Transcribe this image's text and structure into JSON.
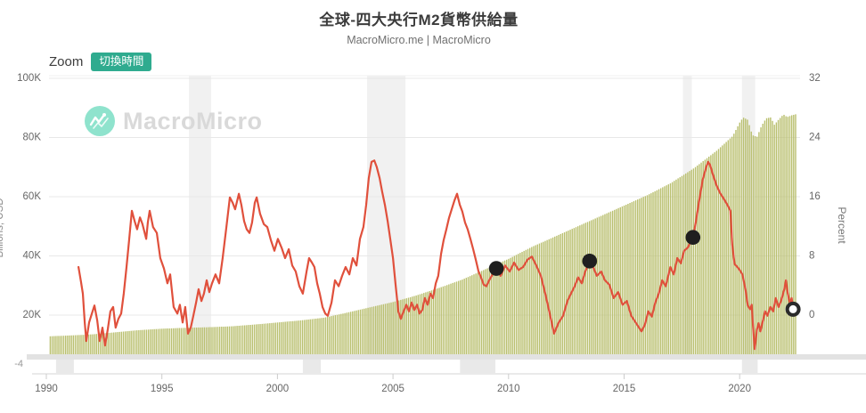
{
  "header": {
    "title": "全球-四大央行M2貨幣供給量",
    "subtitle": "MacroMicro.me | MacroMicro"
  },
  "toolbar": {
    "zoom_label": "Zoom",
    "switch_time_label": "切換時間",
    "button_color": "#2fab8f"
  },
  "watermark": {
    "brand": "MacroMicro",
    "icon_color": "#8fe3cd"
  },
  "chart_data": {
    "type": "combo",
    "title": "全球-四大央行M2貨幣供給量",
    "source": "MacroMicro.me | MacroMicro",
    "x_axis": {
      "tick_labels": [
        "1990",
        "1995",
        "2000",
        "2005",
        "2010",
        "2015",
        "2020"
      ],
      "tick_years": [
        1990,
        1995,
        2000,
        2005,
        2010,
        2015,
        2020
      ],
      "range_years": [
        1989.8,
        2024.4
      ]
    },
    "left_axis": {
      "title": "Billions, USD",
      "tick_labels": [
        "100K",
        "80K",
        "60K",
        "40K",
        "20K"
      ],
      "tick_values_K": [
        100,
        80,
        60,
        40,
        20
      ],
      "bottom_label": "-4"
    },
    "right_axis": {
      "title": "Percent",
      "tick_labels": [
        "32",
        "24",
        "16",
        "8",
        "0"
      ],
      "tick_values": [
        32,
        24,
        16,
        8,
        0
      ]
    },
    "grid_color": "#e8e8e8",
    "series": [
      {
        "id": "m2-bars",
        "type": "bar",
        "unit": "Billions USD (K = thousands)",
        "color": "#b9bf6e",
        "anchors_year_valueK": [
          [
            1990,
            12.8
          ],
          [
            1991,
            13.1
          ],
          [
            1992,
            13.5
          ],
          [
            1993,
            14.2
          ],
          [
            1994,
            14.9
          ],
          [
            1995,
            15.4
          ],
          [
            1996,
            15.7
          ],
          [
            1997,
            15.9
          ],
          [
            1998,
            16.2
          ],
          [
            1999,
            16.8
          ],
          [
            2000,
            17.5
          ],
          [
            2001,
            18.2
          ],
          [
            2002,
            19.1
          ],
          [
            2003,
            20.8
          ],
          [
            2004,
            22.6
          ],
          [
            2005,
            24.4
          ],
          [
            2006,
            26.6
          ],
          [
            2007,
            29.2
          ],
          [
            2008,
            32.0
          ],
          [
            2009,
            35.5
          ],
          [
            2010,
            39.0
          ],
          [
            2011,
            43.0
          ],
          [
            2012,
            46.5
          ],
          [
            2013,
            50.0
          ],
          [
            2014,
            53.5
          ],
          [
            2015,
            57.0
          ],
          [
            2016,
            60.5
          ],
          [
            2017,
            64.5
          ],
          [
            2018,
            69.5
          ],
          [
            2019,
            75.5
          ],
          [
            2019.7,
            80.5
          ],
          [
            2020.0,
            85.0
          ],
          [
            2020.15,
            86.8
          ],
          [
            2020.35,
            86.0
          ],
          [
            2020.55,
            80.8
          ],
          [
            2020.75,
            80.2
          ],
          [
            2020.95,
            84.0
          ],
          [
            2021.15,
            86.5
          ],
          [
            2021.35,
            86.8
          ],
          [
            2021.5,
            84.3
          ],
          [
            2021.7,
            86.2
          ],
          [
            2021.9,
            87.8
          ],
          [
            2022.05,
            86.9
          ],
          [
            2022.25,
            87.5
          ],
          [
            2022.45,
            87.9
          ]
        ]
      },
      {
        "id": "yoy-line",
        "type": "line",
        "unit": "%",
        "color": "#e0503c",
        "points_year_pct": [
          [
            1991.39,
            6.5
          ],
          [
            1991.5,
            4.5
          ],
          [
            1991.58,
            2.9
          ],
          [
            1991.66,
            -1
          ],
          [
            1991.73,
            -3.5
          ],
          [
            1991.85,
            -1
          ],
          [
            1991.97,
            0.2
          ],
          [
            1992.08,
            1.3
          ],
          [
            1992.2,
            -0.7
          ],
          [
            1992.31,
            -3.5
          ],
          [
            1992.43,
            -1.7
          ],
          [
            1992.54,
            -4.1
          ],
          [
            1992.66,
            -1.9
          ],
          [
            1992.77,
            0.5
          ],
          [
            1992.89,
            1.1
          ],
          [
            1993,
            -1.7
          ],
          [
            1993.12,
            -0.5
          ],
          [
            1993.24,
            0.2
          ],
          [
            1993.35,
            2.9
          ],
          [
            1993.47,
            6.5
          ],
          [
            1993.58,
            10.1
          ],
          [
            1993.7,
            14.1
          ],
          [
            1993.82,
            12.7
          ],
          [
            1993.93,
            11.6
          ],
          [
            1994.05,
            13.2
          ],
          [
            1994.16,
            12.3
          ],
          [
            1994.32,
            10.3
          ],
          [
            1994.39,
            12.5
          ],
          [
            1994.47,
            14.1
          ],
          [
            1994.62,
            11.9
          ],
          [
            1994.78,
            11.1
          ],
          [
            1994.93,
            7.7
          ],
          [
            1995.09,
            6.3
          ],
          [
            1995.24,
            4.3
          ],
          [
            1995.36,
            5.5
          ],
          [
            1995.51,
            1.1
          ],
          [
            1995.67,
            0.2
          ],
          [
            1995.78,
            1.4
          ],
          [
            1995.9,
            -1
          ],
          [
            1996.01,
            1.1
          ],
          [
            1996.13,
            -2.5
          ],
          [
            1996.25,
            -1.7
          ],
          [
            1996.36,
            -0.1
          ],
          [
            1996.48,
            1.7
          ],
          [
            1996.59,
            3.5
          ],
          [
            1996.71,
            1.9
          ],
          [
            1996.82,
            2.9
          ],
          [
            1996.94,
            4.7
          ],
          [
            1997.05,
            3.1
          ],
          [
            1997.17,
            4.3
          ],
          [
            1997.32,
            5.5
          ],
          [
            1997.48,
            4.3
          ],
          [
            1997.63,
            7.7
          ],
          [
            1997.79,
            11.9
          ],
          [
            1997.94,
            15.9
          ],
          [
            1998.06,
            15.2
          ],
          [
            1998.17,
            14.3
          ],
          [
            1998.33,
            16.4
          ],
          [
            1998.44,
            14.9
          ],
          [
            1998.56,
            12.7
          ],
          [
            1998.67,
            11.6
          ],
          [
            1998.79,
            11.1
          ],
          [
            1998.9,
            12.5
          ],
          [
            1999.02,
            15.2
          ],
          [
            1999.1,
            15.9
          ],
          [
            1999.25,
            13.7
          ],
          [
            1999.41,
            12.3
          ],
          [
            1999.56,
            11.9
          ],
          [
            1999.72,
            10.1
          ],
          [
            1999.87,
            8.7
          ],
          [
            2000.02,
            10.3
          ],
          [
            2000.18,
            9.1
          ],
          [
            2000.33,
            7.7
          ],
          [
            2000.49,
            8.9
          ],
          [
            2000.64,
            6.7
          ],
          [
            2000.79,
            5.9
          ],
          [
            2000.95,
            3.9
          ],
          [
            2001.1,
            2.9
          ],
          [
            2001.26,
            5.9
          ],
          [
            2001.37,
            7.7
          ],
          [
            2001.49,
            7.1
          ],
          [
            2001.6,
            6.5
          ],
          [
            2001.72,
            4.3
          ],
          [
            2001.83,
            2.9
          ],
          [
            2001.95,
            1.1
          ],
          [
            2002.07,
            0.2
          ],
          [
            2002.18,
            -0.1
          ],
          [
            2002.34,
            1.7
          ],
          [
            2002.49,
            4.7
          ],
          [
            2002.65,
            3.9
          ],
          [
            2002.8,
            5.3
          ],
          [
            2002.95,
            6.5
          ],
          [
            2003.11,
            5.5
          ],
          [
            2003.26,
            7.7
          ],
          [
            2003.42,
            6.7
          ],
          [
            2003.57,
            10.3
          ],
          [
            2003.72,
            11.9
          ],
          [
            2003.84,
            14.9
          ],
          [
            2003.95,
            18.5
          ],
          [
            2004.07,
            20.7
          ],
          [
            2004.19,
            20.9
          ],
          [
            2004.3,
            20
          ],
          [
            2004.42,
            18.5
          ],
          [
            2004.53,
            16.7
          ],
          [
            2004.65,
            14.9
          ],
          [
            2004.77,
            12.7
          ],
          [
            2004.88,
            10.3
          ],
          [
            2005,
            7.7
          ],
          [
            2005.11,
            4.1
          ],
          [
            2005.23,
            0.5
          ],
          [
            2005.34,
            -0.5
          ],
          [
            2005.46,
            0.5
          ],
          [
            2005.58,
            1.4
          ],
          [
            2005.69,
            0.5
          ],
          [
            2005.81,
            1.7
          ],
          [
            2005.92,
            0.7
          ],
          [
            2006.04,
            1.4
          ],
          [
            2006.15,
            0.2
          ],
          [
            2006.27,
            0.7
          ],
          [
            2006.38,
            2.3
          ],
          [
            2006.5,
            1.4
          ],
          [
            2006.62,
            2.9
          ],
          [
            2006.73,
            2.3
          ],
          [
            2006.85,
            4.3
          ],
          [
            2006.96,
            5.3
          ],
          [
            2007.08,
            8.3
          ],
          [
            2007.19,
            10.1
          ],
          [
            2007.31,
            11.6
          ],
          [
            2007.42,
            13.1
          ],
          [
            2007.54,
            14.3
          ],
          [
            2007.66,
            15.5
          ],
          [
            2007.77,
            16.4
          ],
          [
            2007.89,
            14.9
          ],
          [
            2008,
            14
          ],
          [
            2008.12,
            12.5
          ],
          [
            2008.23,
            11.6
          ],
          [
            2008.35,
            10.3
          ],
          [
            2008.47,
            8.9
          ],
          [
            2008.58,
            7.5
          ],
          [
            2008.7,
            5.9
          ],
          [
            2008.81,
            5.1
          ],
          [
            2008.93,
            4.1
          ],
          [
            2009.04,
            3.9
          ],
          [
            2009.16,
            4.7
          ],
          [
            2009.27,
            5.3
          ],
          [
            2009.39,
            5.9
          ],
          [
            2009.47,
            6.3
          ],
          [
            2009.66,
            5.3
          ],
          [
            2009.85,
            6.7
          ],
          [
            2010.05,
            5.9
          ],
          [
            2010.24,
            7.1
          ],
          [
            2010.43,
            6.1
          ],
          [
            2010.63,
            6.5
          ],
          [
            2010.82,
            7.5
          ],
          [
            2011.01,
            7.9
          ],
          [
            2011.2,
            6.7
          ],
          [
            2011.4,
            5.3
          ],
          [
            2011.59,
            2.9
          ],
          [
            2011.78,
            0.2
          ],
          [
            2011.97,
            -2.5
          ],
          [
            2012.17,
            -1
          ],
          [
            2012.36,
            -0.1
          ],
          [
            2012.55,
            1.9
          ],
          [
            2012.7,
            2.9
          ],
          [
            2012.86,
            3.9
          ],
          [
            2013.01,
            5.1
          ],
          [
            2013.17,
            4.3
          ],
          [
            2013.32,
            5.9
          ],
          [
            2013.51,
            7.3
          ],
          [
            2013.66,
            6.5
          ],
          [
            2013.82,
            5.3
          ],
          [
            2014.01,
            5.9
          ],
          [
            2014.17,
            4.7
          ],
          [
            2014.36,
            4.1
          ],
          [
            2014.55,
            2.3
          ],
          [
            2014.74,
            3.1
          ],
          [
            2014.93,
            1.4
          ],
          [
            2015.12,
            1.9
          ],
          [
            2015.31,
            -0.1
          ],
          [
            2015.5,
            -1
          ],
          [
            2015.75,
            -2.2
          ],
          [
            2015.9,
            -1.3
          ],
          [
            2016.05,
            0.5
          ],
          [
            2016.2,
            -0.2
          ],
          [
            2016.35,
            1.7
          ],
          [
            2016.5,
            2.9
          ],
          [
            2016.65,
            4.7
          ],
          [
            2016.8,
            3.9
          ],
          [
            2017,
            6.5
          ],
          [
            2017.15,
            5.5
          ],
          [
            2017.3,
            7.7
          ],
          [
            2017.45,
            7
          ],
          [
            2017.6,
            8.7
          ],
          [
            2017.75,
            9.1
          ],
          [
            2017.98,
            10.5
          ],
          [
            2018.1,
            12.5
          ],
          [
            2018.25,
            15.5
          ],
          [
            2018.4,
            18.3
          ],
          [
            2018.55,
            20
          ],
          [
            2018.64,
            20.7
          ],
          [
            2018.72,
            20.3
          ],
          [
            2018.85,
            18.9
          ],
          [
            2019,
            17.5
          ],
          [
            2019.15,
            16.5
          ],
          [
            2019.3,
            15.8
          ],
          [
            2019.45,
            15
          ],
          [
            2019.6,
            14.1
          ],
          [
            2019.68,
            9.5
          ],
          [
            2019.78,
            6.9
          ],
          [
            2019.9,
            6.5
          ],
          [
            2020,
            6.1
          ],
          [
            2020.12,
            5.5
          ],
          [
            2020.25,
            3.5
          ],
          [
            2020.35,
            1.3
          ],
          [
            2020.45,
            0.8
          ],
          [
            2020.52,
            1.4
          ],
          [
            2020.58,
            -1.5
          ],
          [
            2020.65,
            -4.6
          ],
          [
            2020.75,
            -1.9
          ],
          [
            2020.82,
            -1.1
          ],
          [
            2020.9,
            -2.2
          ],
          [
            2021.1,
            0.5
          ],
          [
            2021.2,
            -0.1
          ],
          [
            2021.33,
            1.1
          ],
          [
            2021.45,
            0.5
          ],
          [
            2021.56,
            2.3
          ],
          [
            2021.68,
            1.1
          ],
          [
            2021.8,
            2
          ],
          [
            2021.93,
            3.5
          ],
          [
            2022,
            4.7
          ],
          [
            2022.08,
            2.9
          ],
          [
            2022.17,
            1.6
          ],
          [
            2022.25,
            2.3
          ],
          [
            2022.31,
            0.8
          ]
        ]
      }
    ],
    "event_markers": {
      "color": "#1f1f1f",
      "radius": 8.3,
      "points_year_pct": [
        [
          2009.47,
          6.3
        ],
        [
          2013.51,
          7.3
        ],
        [
          2017.98,
          10.5
        ]
      ]
    },
    "latest_marker": {
      "style": "open-circle",
      "point_year_pct": [
        2022.31,
        0.8
      ]
    },
    "plot_bands_years": [
      [
        1996.17,
        1997.13
      ],
      [
        2003.88,
        2005.54
      ],
      [
        2017.55,
        2017.93
      ],
      [
        2020.1,
        2020.67
      ]
    ],
    "navigator_blocks_years": [
      [
        1990.42,
        1991.19
      ],
      [
        2001.1,
        2001.88
      ],
      [
        2007.9,
        2009.43
      ],
      [
        2020.1,
        2020.78
      ]
    ],
    "legend": "none"
  }
}
